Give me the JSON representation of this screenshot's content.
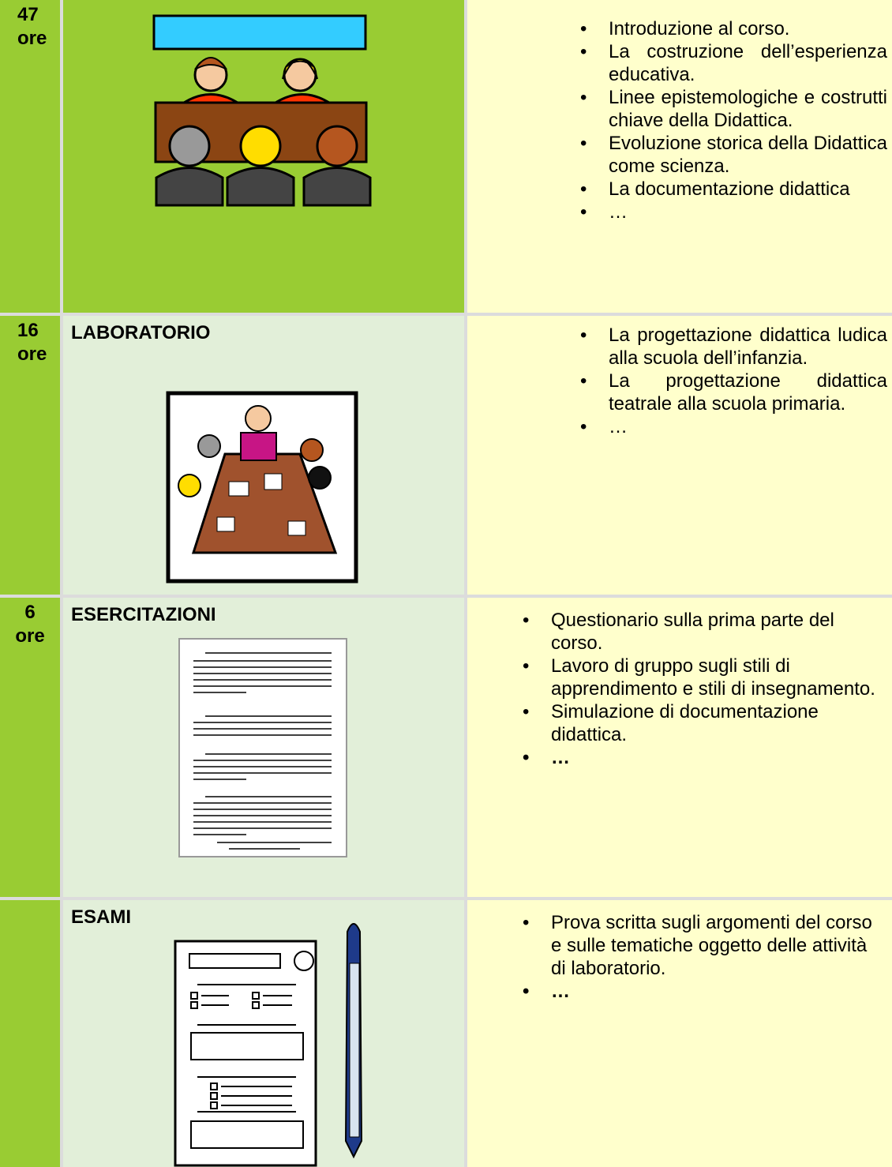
{
  "table": {
    "rows": [
      {
        "hours": "47",
        "unit": "ore",
        "items": [
          "Introduzione al corso.",
          "La costruzione dell’esperienza educativa.",
          "Linee epistemologiche e costrutti chiave della Didattica.",
          "Evoluzione storica della Didattica come scienza.",
          "La documentazione didattica",
          "…"
        ]
      },
      {
        "hours": "16",
        "unit": "ore",
        "title": "LABORATORIO",
        "items": [
          "La progettazione didattica ludica alla scuola dell’infanzia.",
          "La progettazione didattica teatrale alla scuola primaria.",
          "…"
        ]
      },
      {
        "hours": "6",
        "unit": "ore",
        "title": "ESERCITAZIONI",
        "items": [
          "Questionario sulla prima parte del corso.",
          "Lavoro di gruppo sugli stili di apprendimento e stili di insegnamento.",
          "Simulazione di documentazione didattica.",
          "…"
        ]
      },
      {
        "title": "ESAMI",
        "items": [
          "Prova scritta sugli argomenti del corso e sulle tematiche oggetto delle attività di laboratorio.",
          "…"
        ]
      }
    ]
  }
}
